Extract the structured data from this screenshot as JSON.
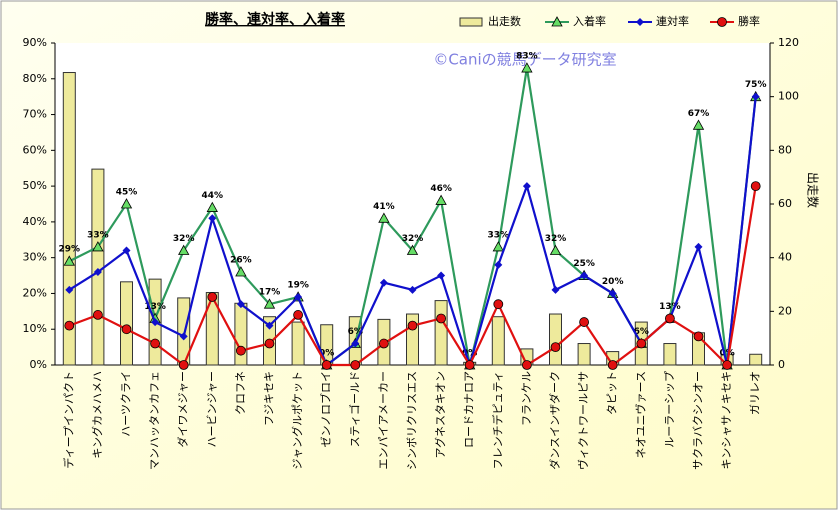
{
  "chart_data": {
    "type": "combo",
    "title": "勝率、連対率、入着率",
    "watermark": "©Caniの競馬データ研究室",
    "y2label": "出走数",
    "categories": [
      "ディープインパクト",
      "キングカメハメハ",
      "ハーツクライ",
      "マンハッタンカフェ",
      "ダイワメジャー",
      "ハービンジャー",
      "クロフネ",
      "フジキセキ",
      "ジャングルポケット",
      "ゼンノロブロイ",
      "スティゴールド",
      "エンパイアメーカー",
      "シンボリクリスエス",
      "アグネスタキオン",
      "ロードカナロア",
      "フレンチデピュティ",
      "フランケル",
      "ダンスインザダーク",
      "ヴィクトワールピサ",
      "タピット",
      "ネオユニヴァース",
      "ルーラーシップ",
      "サクラバクシンオー",
      "キンシャサノキセキ",
      "ガリレオ"
    ],
    "series": [
      {
        "name": "出走数",
        "type": "bar",
        "axis": "y2",
        "color": "#eeea9c",
        "values": [
          109,
          73,
          31,
          32,
          25,
          27,
          23,
          18,
          16,
          15,
          18,
          17,
          19,
          24,
          1,
          18,
          6,
          19,
          8,
          5,
          16,
          8,
          12,
          4,
          4
        ]
      },
      {
        "name": "入着率",
        "type": "line",
        "marker": "triangle",
        "color": "#2e9a5c",
        "values": [
          29,
          33,
          45,
          13,
          32,
          44,
          26,
          17,
          19,
          0,
          6,
          41,
          32,
          46,
          0,
          33,
          83,
          32,
          25,
          20,
          6,
          13,
          67,
          0,
          75
        ],
        "value_labels": [
          "29%",
          "33%",
          "45%",
          "13%",
          "32%",
          "44%",
          "26%",
          "17%",
          "19%",
          "0%",
          "6%",
          "41%",
          "32%",
          "46%",
          "0%",
          "33%",
          "83%",
          "32%",
          "25%",
          "20%",
          "6%",
          "13%",
          "67%",
          "0%",
          "75%"
        ]
      },
      {
        "name": "連対率",
        "type": "line",
        "marker": "diamond",
        "color": "#1010cc",
        "values": [
          21,
          26,
          32,
          12,
          8,
          41,
          17,
          11,
          19,
          0,
          6,
          23,
          21,
          25,
          0,
          28,
          50,
          21,
          25,
          20,
          6,
          13,
          33,
          0,
          75
        ]
      },
      {
        "name": "勝率",
        "type": "line",
        "marker": "circle",
        "color": "#e01010",
        "values": [
          11,
          14,
          10,
          6,
          0,
          19,
          4,
          6,
          14,
          0,
          0,
          6,
          11,
          13,
          0,
          17,
          0,
          5,
          12,
          0,
          6,
          13,
          8,
          0,
          50
        ]
      }
    ],
    "ylim": [
      0,
      90
    ],
    "yticks": [
      {
        "value": 0,
        "label": "0%"
      },
      {
        "value": 10,
        "label": "10%"
      },
      {
        "value": 20,
        "label": "20%"
      },
      {
        "value": 30,
        "label": "30%"
      },
      {
        "value": 40,
        "label": "40%"
      },
      {
        "value": 50,
        "label": "50%"
      },
      {
        "value": 60,
        "label": "60%"
      },
      {
        "value": 70,
        "label": "70%"
      },
      {
        "value": 80,
        "label": "80%"
      },
      {
        "value": 90,
        "label": "90%"
      }
    ],
    "y2lim": [
      0,
      120
    ],
    "y2ticks": [
      0,
      20,
      40,
      60,
      80,
      100,
      120
    ],
    "grid": false
  }
}
